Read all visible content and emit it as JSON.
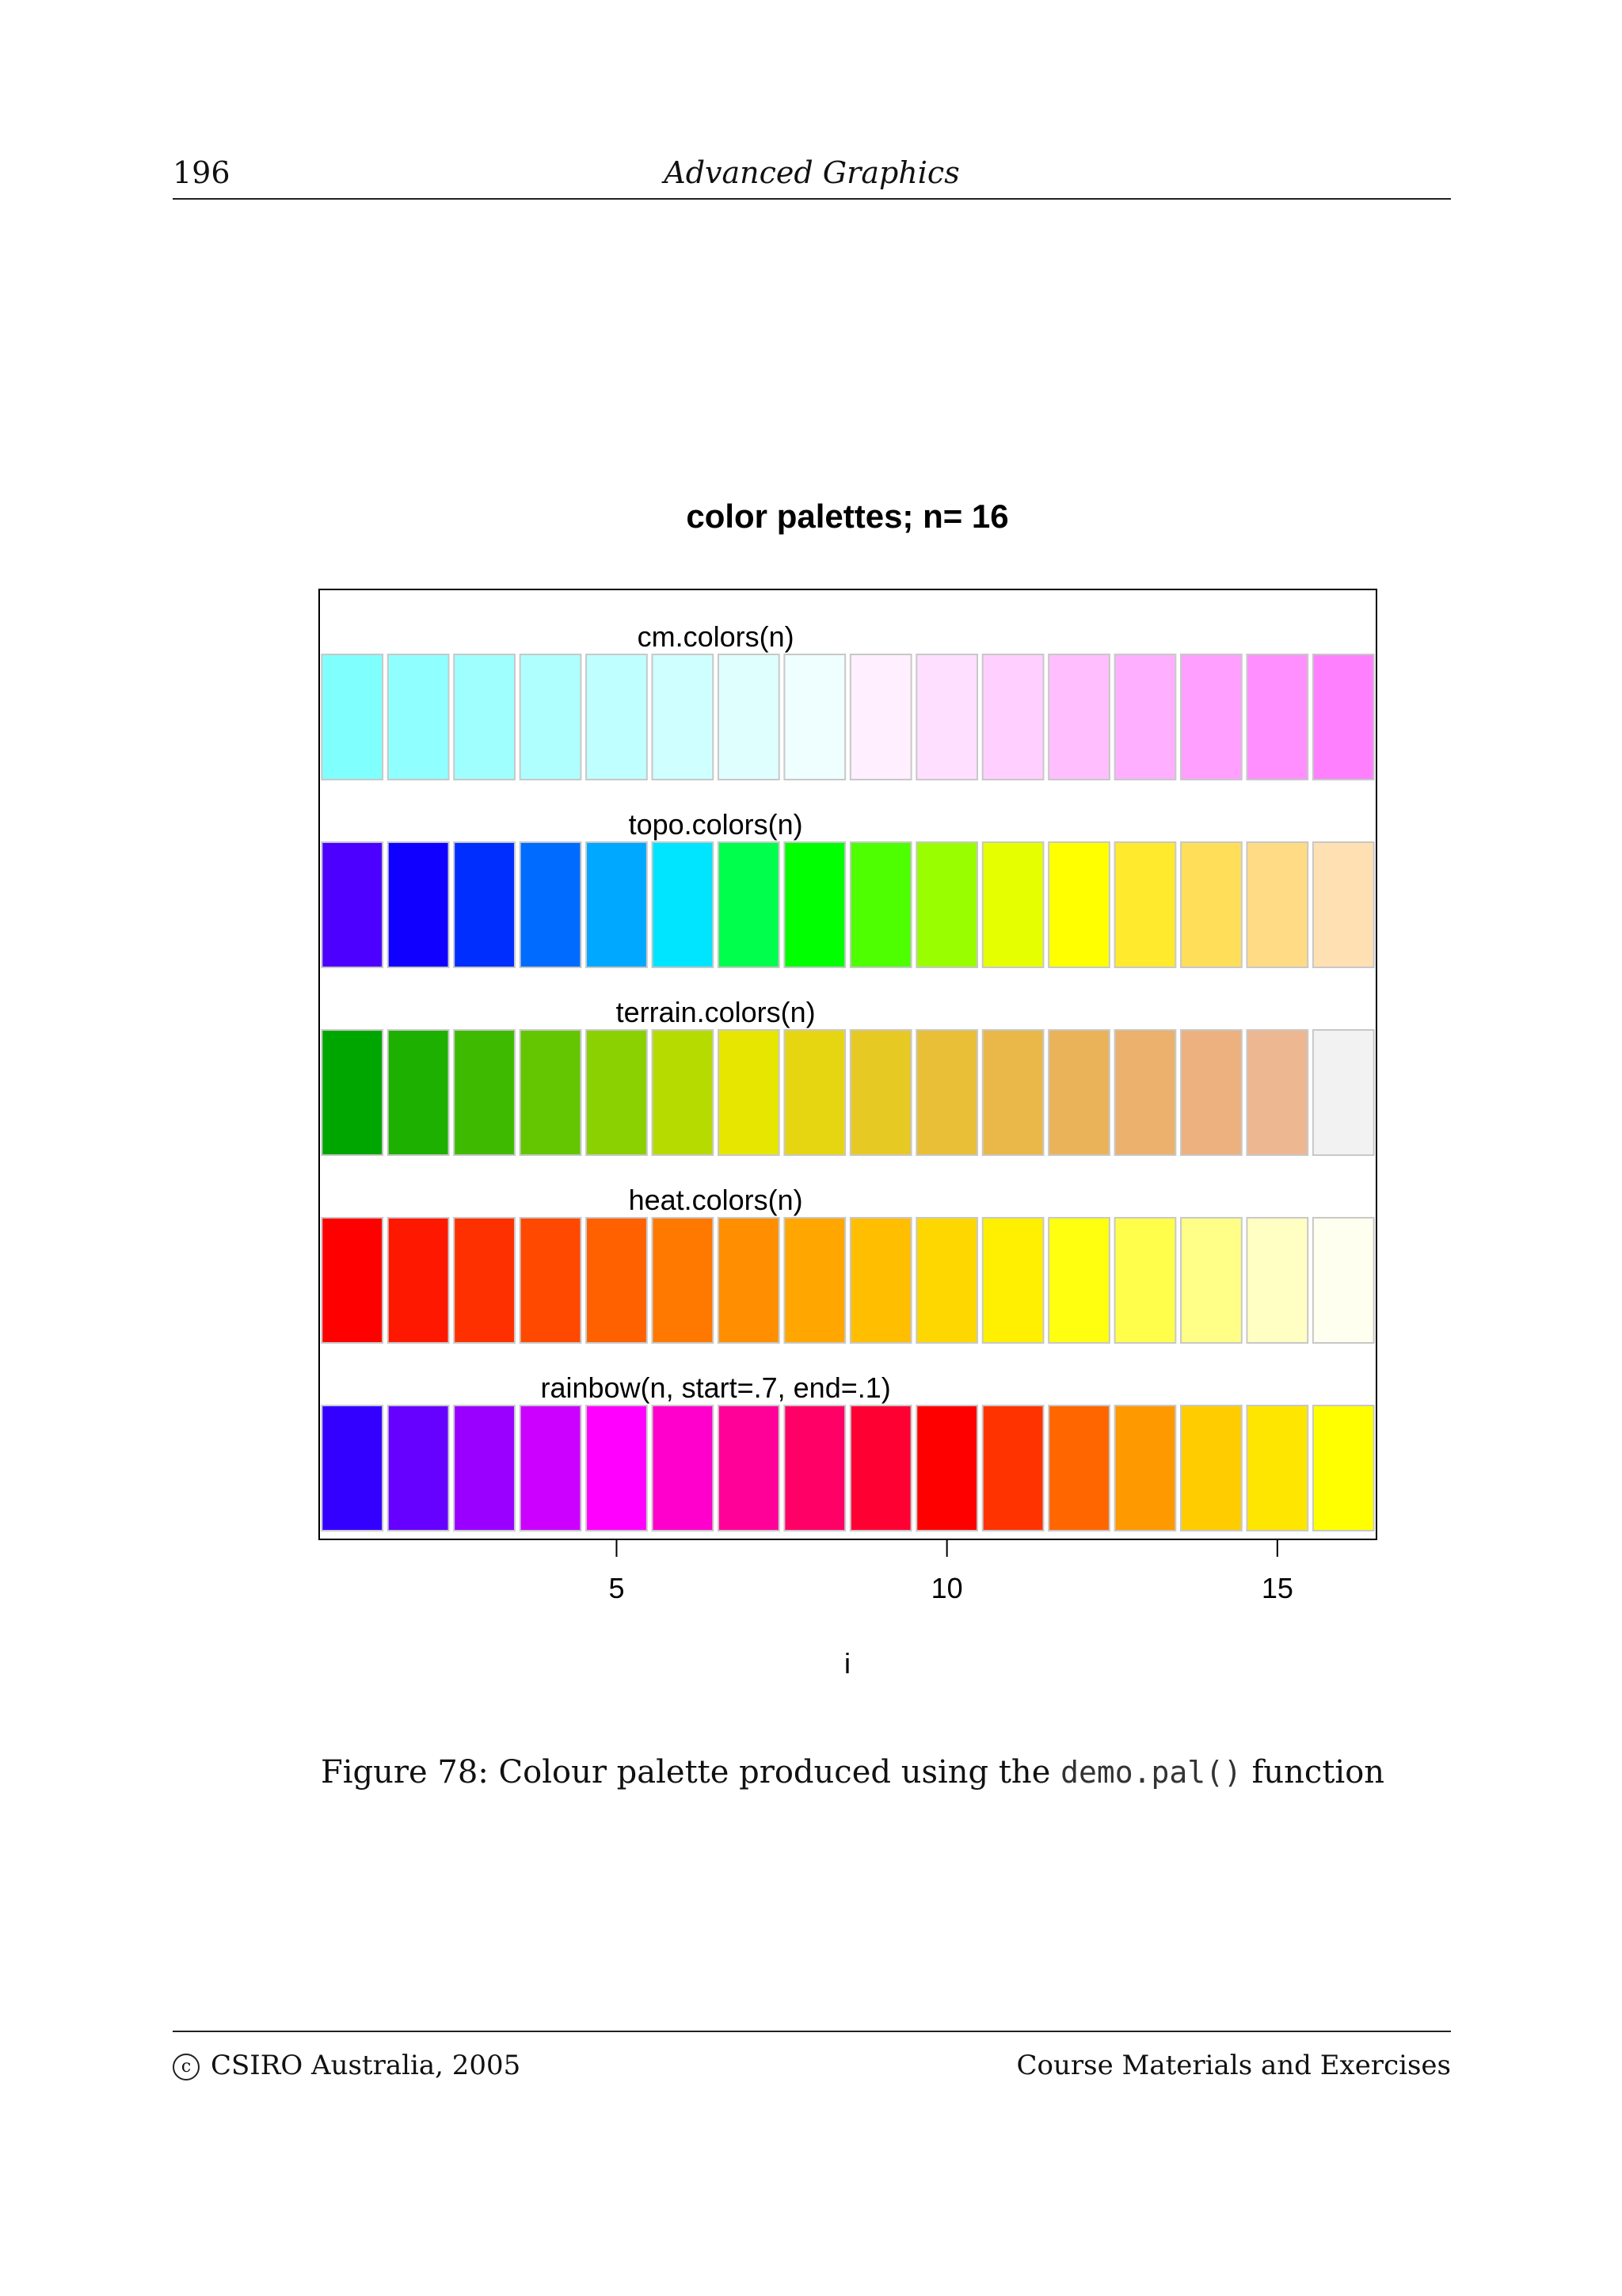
{
  "header": {
    "page_number": "196",
    "running_title": "Advanced Graphics"
  },
  "chart_data": {
    "type": "heatmap",
    "title": "color palettes;  n= 16",
    "xlabel": "i",
    "xticks": [
      5,
      10,
      15
    ],
    "xlim": [
      0.5,
      16.5
    ],
    "n": 16,
    "rows": [
      {
        "label": "cm.colors(n)",
        "colors": [
          "#80FFFF",
          "#8FFFFF",
          "#9FFFFF",
          "#AFFFFF",
          "#BFFFFF",
          "#CFFFFF",
          "#DFFFFF",
          "#EFFFFF",
          "#FFEFFF",
          "#FFDFFF",
          "#FFCFFF",
          "#FFBFFF",
          "#FFAFFF",
          "#FF9FFF",
          "#FF8FFF",
          "#FF80FF"
        ]
      },
      {
        "label": "topo.colors(n)",
        "colors": [
          "#4C00FF",
          "#0F00FF",
          "#002EFF",
          "#006BFF",
          "#00A8FF",
          "#00E5FF",
          "#00FF4D",
          "#00FF00",
          "#4DFF00",
          "#99FF00",
          "#E6FF00",
          "#FFFF00",
          "#FFEA2D",
          "#FFDE59",
          "#FFDB86",
          "#FFE0B3"
        ]
      },
      {
        "label": "terrain.colors(n)",
        "colors": [
          "#00A600",
          "#1DB000",
          "#3EBB00",
          "#63C600",
          "#8BD000",
          "#B6DB00",
          "#E6E600",
          "#E6D612",
          "#E7C924",
          "#E8BF36",
          "#E9B848",
          "#EAB35A",
          "#EBB16D",
          "#ECB17F",
          "#EDB792",
          "#F2F2F2"
        ]
      },
      {
        "label": "heat.colors(n)",
        "colors": [
          "#FF0000",
          "#FF1800",
          "#FF3000",
          "#FF4800",
          "#FF6000",
          "#FF7800",
          "#FF8F00",
          "#FFA700",
          "#FFBF00",
          "#FFD700",
          "#FFEF00",
          "#FFFF0F",
          "#FFFF4B",
          "#FFFF87",
          "#FFFFC3",
          "#FFFFEF"
        ]
      },
      {
        "label": "rainbow(n, start=.7, end=.1)",
        "colors": [
          "#3300FF",
          "#6600FF",
          "#9900FF",
          "#CC00FF",
          "#FF00FF",
          "#FF00CC",
          "#FF0099",
          "#FF0066",
          "#FF0033",
          "#FF0000",
          "#FF3300",
          "#FF6600",
          "#FF9900",
          "#FFCC00",
          "#FFE600",
          "#FFFF00"
        ]
      }
    ],
    "grid": false,
    "legend": "none"
  },
  "caption": {
    "prefix": "Figure 78: Colour palette produced using the",
    "code": "demo.pal()",
    "suffix": "function"
  },
  "footer": {
    "left": "CSIRO Australia, 2005",
    "copyright_symbol": "c",
    "right": "Course Materials and Exercises"
  }
}
